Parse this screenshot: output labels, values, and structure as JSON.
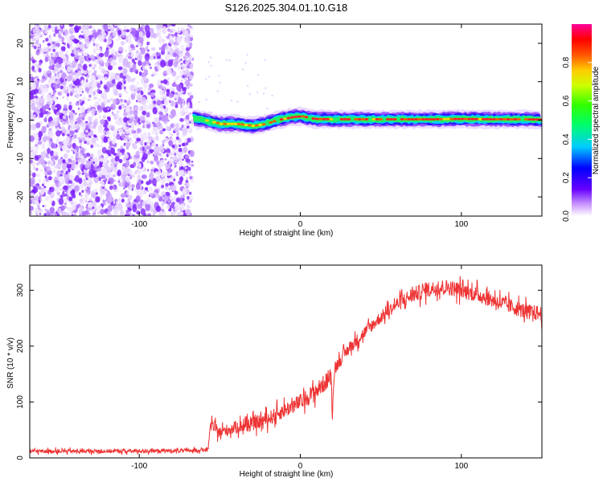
{
  "title": "S126.2025.304.01.10.G18",
  "chart_data": [
    {
      "type": "heatmap",
      "name": "spectrogram",
      "xlabel": "Height of straight line (km)",
      "ylabel": "Frequency (Hz)",
      "xlim": [
        -168,
        150
      ],
      "ylim": [
        -25,
        25
      ],
      "xticks": [
        -100,
        0,
        100
      ],
      "yticks": [
        -20,
        -10,
        0,
        10,
        20
      ],
      "noise_region": [
        -168,
        -67
      ],
      "signal_start": -67,
      "signal_track": [
        [
          -67,
          0.5
        ],
        [
          -60,
          0
        ],
        [
          -50,
          -1
        ],
        [
          -40,
          -1
        ],
        [
          -30,
          -1.5
        ],
        [
          -22,
          -1
        ],
        [
          -15,
          0
        ],
        [
          -5,
          0.8
        ],
        [
          0,
          1
        ],
        [
          8,
          0.3
        ],
        [
          20,
          0.2
        ],
        [
          40,
          0.2
        ],
        [
          60,
          0.2
        ],
        [
          80,
          0.2
        ],
        [
          100,
          0.3
        ],
        [
          120,
          0.2
        ],
        [
          140,
          0.2
        ],
        [
          150,
          0.1
        ]
      ],
      "colorbar": {
        "label": "Normalized spectral amplitude",
        "range": [
          0,
          1
        ],
        "ticks": [
          "0.0",
          "0.2",
          "0.4",
          "0.6",
          "0.8"
        ]
      }
    },
    {
      "type": "line",
      "name": "snr",
      "xlabel": "Height of straight line (km)",
      "ylabel": "SNR (10 * v/v)",
      "xlim": [
        -168,
        150
      ],
      "ylim": [
        0,
        345
      ],
      "xticks": [
        -100,
        0,
        100
      ],
      "yticks": [
        0,
        100,
        200,
        300
      ],
      "color": "#ee3333",
      "series_points": [
        [
          -168,
          12
        ],
        [
          -120,
          12
        ],
        [
          -70,
          13
        ],
        [
          -57,
          15
        ],
        [
          -56,
          60
        ],
        [
          -50,
          45
        ],
        [
          -40,
          55
        ],
        [
          -30,
          60
        ],
        [
          -20,
          70
        ],
        [
          -10,
          85
        ],
        [
          0,
          100
        ],
        [
          10,
          120
        ],
        [
          19,
          145
        ],
        [
          20,
          75
        ],
        [
          21,
          160
        ],
        [
          30,
          195
        ],
        [
          40,
          225
        ],
        [
          50,
          252
        ],
        [
          60,
          275
        ],
        [
          70,
          292
        ],
        [
          80,
          302
        ],
        [
          90,
          306
        ],
        [
          100,
          300
        ],
        [
          110,
          292
        ],
        [
          120,
          282
        ],
        [
          130,
          272
        ],
        [
          140,
          262
        ],
        [
          150,
          258
        ]
      ]
    }
  ]
}
